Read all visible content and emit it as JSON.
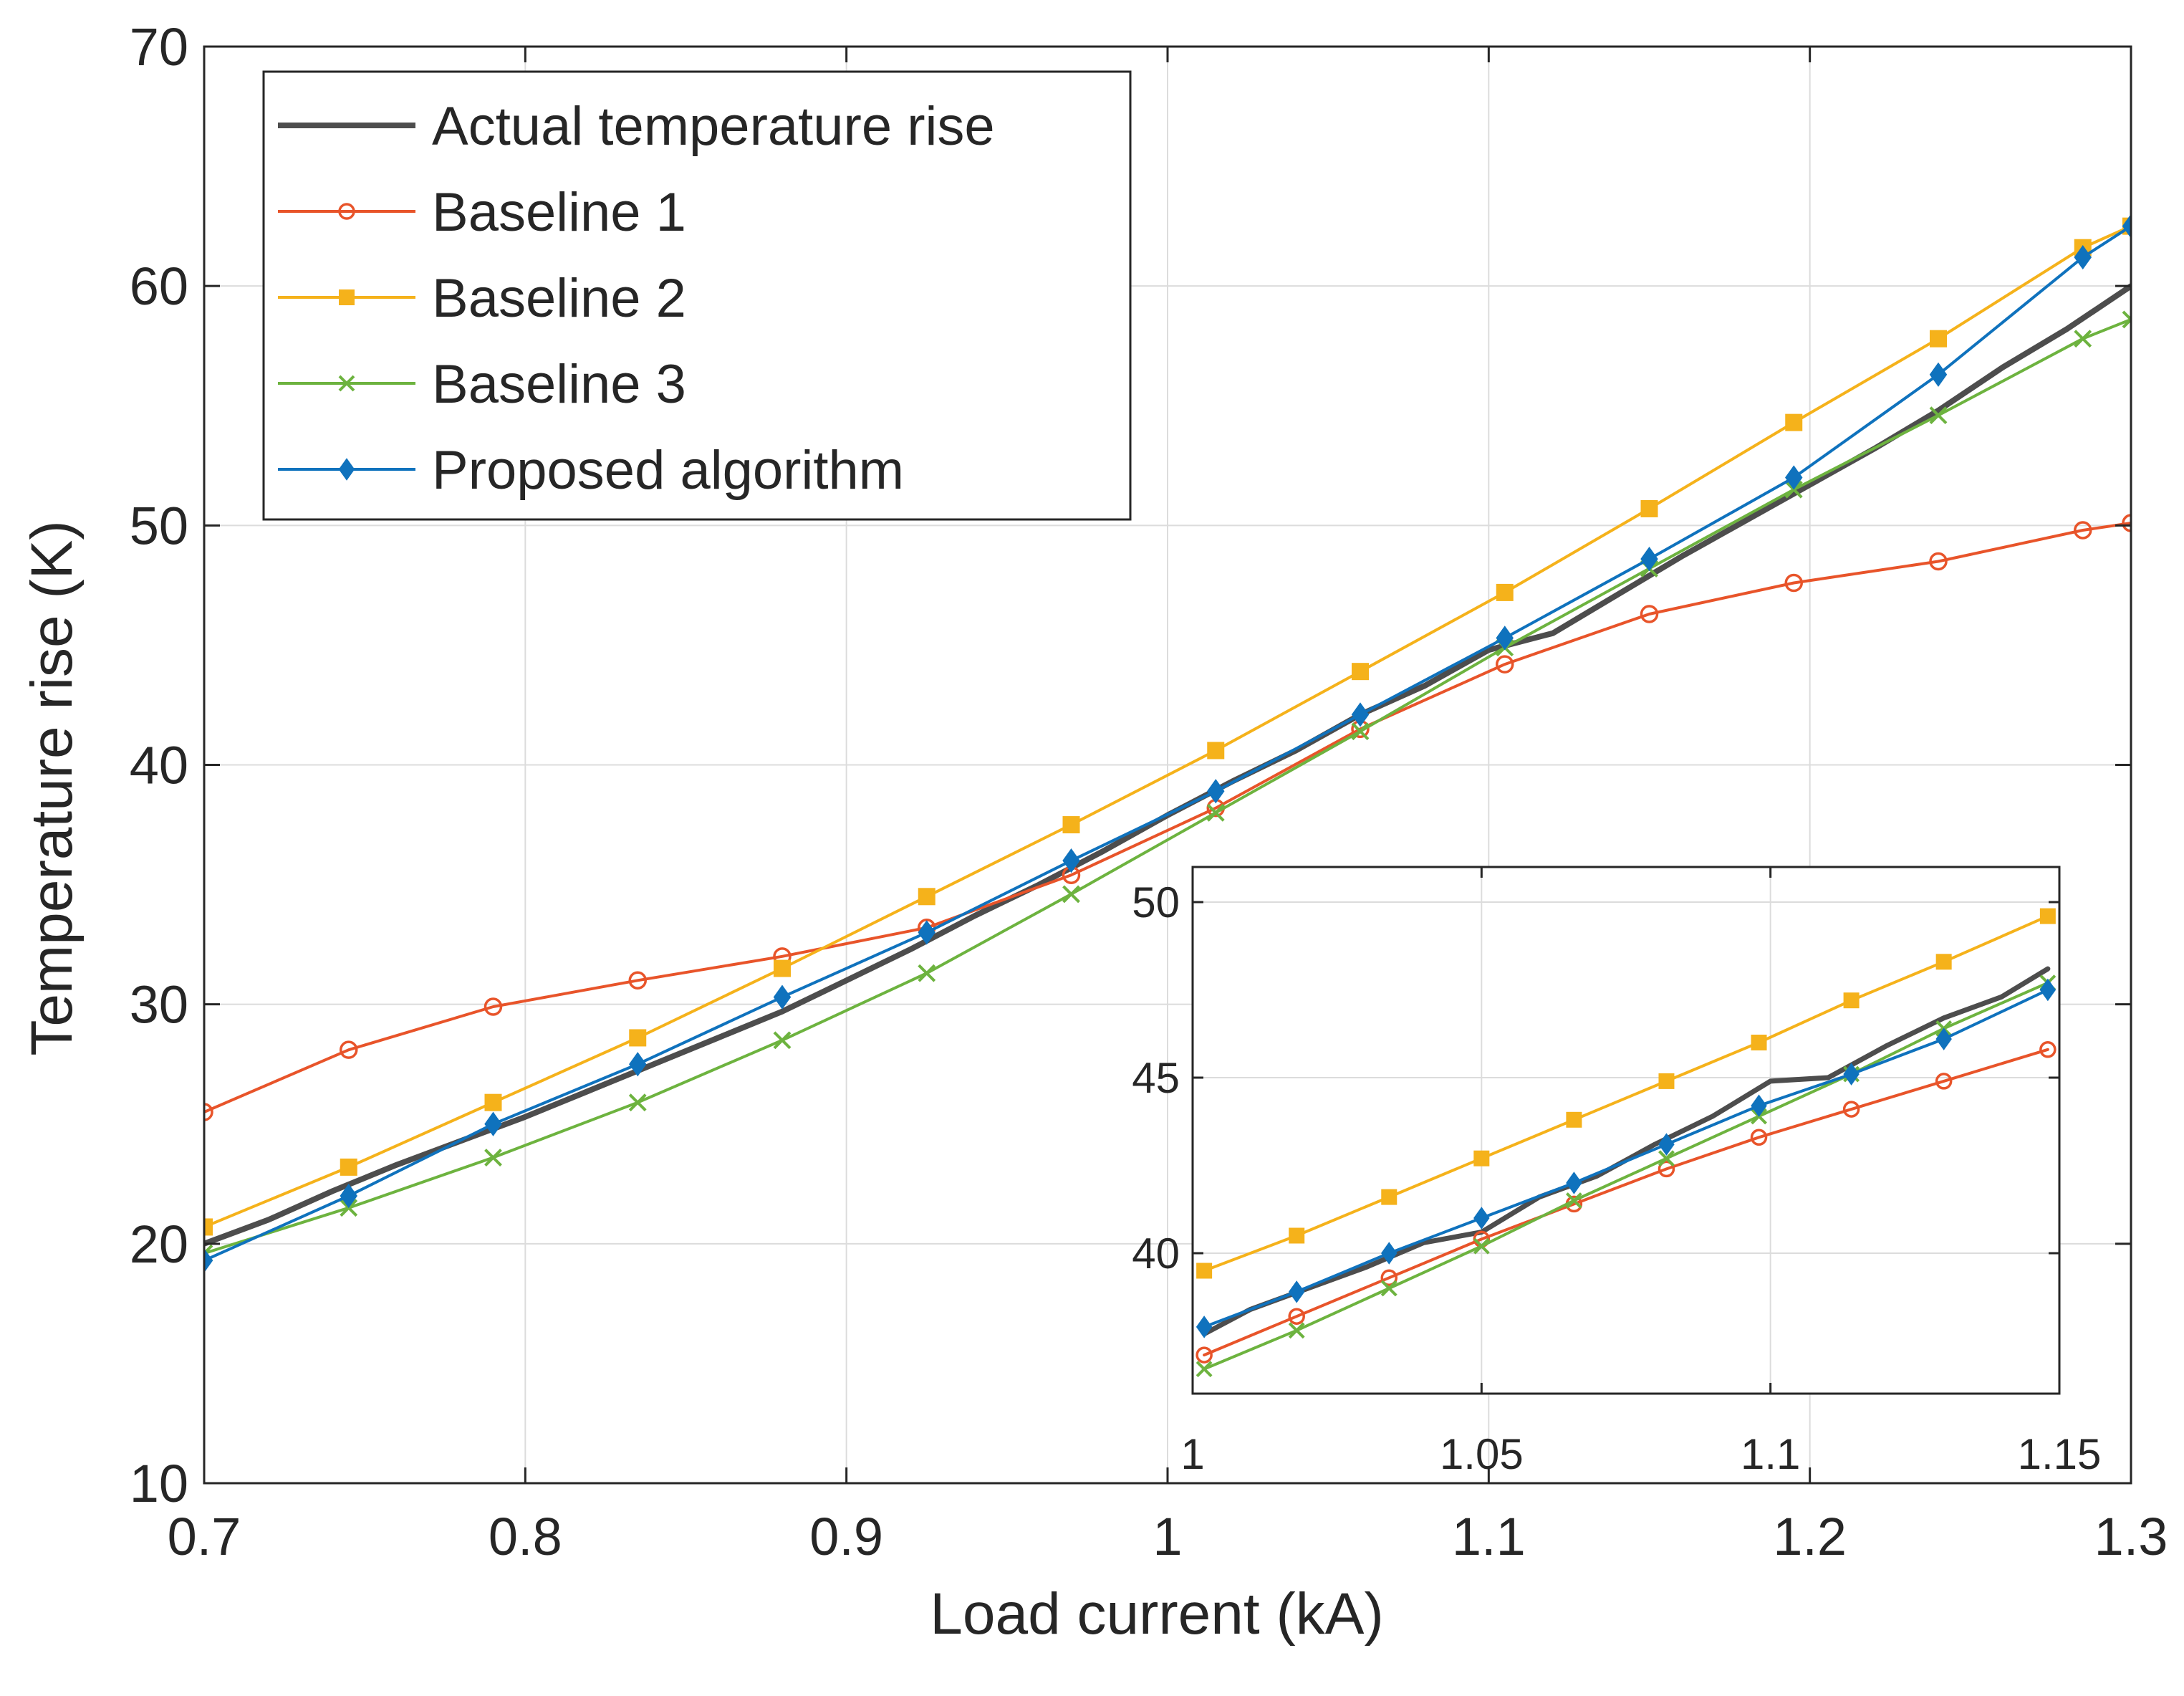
{
  "chart_data": [
    {
      "type": "line",
      "title": "",
      "xlabel": "Load current (kA)",
      "ylabel": "Temperature rise (K)",
      "xlim": [
        0.7,
        1.3
      ],
      "ylim": [
        10,
        70
      ],
      "xticks": [
        0.7,
        0.8,
        0.9,
        1,
        1.1,
        1.2,
        1.3
      ],
      "xtick_labels": [
        "0.7",
        "0.8",
        "0.9",
        "1",
        "1.1",
        "1.2",
        "1.3"
      ],
      "yticks": [
        10,
        20,
        30,
        40,
        50,
        60,
        70
      ],
      "ytick_labels": [
        "10",
        "20",
        "30",
        "40",
        "50",
        "60",
        "70"
      ],
      "grid": true,
      "legend_position": "top-left",
      "series": [
        {
          "name": "Actual temperature rise",
          "color": "#4d4d4d",
          "marker": "none",
          "x": [
            0.7,
            0.72,
            0.74,
            0.76,
            0.78,
            0.8,
            0.82,
            0.84,
            0.86,
            0.88,
            0.9,
            0.92,
            0.94,
            0.96,
            0.98,
            1.0,
            1.02,
            1.04,
            1.06,
            1.08,
            1.1,
            1.12,
            1.14,
            1.16,
            1.18,
            1.2,
            1.22,
            1.24,
            1.26,
            1.28,
            1.3
          ],
          "y": [
            20.0,
            21.0,
            22.2,
            23.3,
            24.3,
            25.3,
            26.4,
            27.5,
            28.6,
            29.7,
            31.0,
            32.3,
            33.7,
            35.0,
            36.4,
            37.9,
            39.3,
            40.6,
            42.1,
            43.3,
            44.8,
            45.5,
            47.1,
            48.7,
            50.2,
            51.7,
            53.2,
            54.8,
            56.6,
            58.2,
            60.0
          ]
        },
        {
          "name": "Baseline 1",
          "color": "#e8542a",
          "marker": "o",
          "x": [
            0.7,
            0.745,
            0.79,
            0.835,
            0.88,
            0.925,
            0.97,
            1.015,
            1.06,
            1.105,
            1.15,
            1.195,
            1.24,
            1.285,
            1.3
          ],
          "y": [
            25.5,
            28.1,
            29.9,
            31.0,
            32.0,
            33.2,
            35.4,
            38.2,
            41.5,
            44.2,
            46.3,
            47.6,
            48.5,
            49.8,
            50.1
          ]
        },
        {
          "name": "Baseline 2",
          "color": "#f5b21b",
          "marker": "s",
          "x": [
            0.7,
            0.745,
            0.79,
            0.835,
            0.88,
            0.925,
            0.97,
            1.015,
            1.06,
            1.105,
            1.15,
            1.195,
            1.24,
            1.285,
            1.3
          ],
          "y": [
            20.7,
            23.2,
            25.9,
            28.6,
            31.5,
            34.5,
            37.5,
            40.6,
            43.9,
            47.2,
            50.7,
            54.3,
            57.8,
            61.6,
            62.5
          ]
        },
        {
          "name": "Baseline 3",
          "color": "#6db33f",
          "marker": "x",
          "x": [
            0.7,
            0.745,
            0.79,
            0.835,
            0.88,
            0.925,
            0.97,
            1.015,
            1.06,
            1.105,
            1.15,
            1.195,
            1.24,
            1.285,
            1.3
          ],
          "y": [
            19.6,
            21.5,
            23.6,
            25.9,
            28.5,
            31.3,
            34.6,
            38.0,
            41.4,
            44.9,
            48.2,
            51.5,
            54.6,
            57.8,
            58.6
          ]
        },
        {
          "name": "Proposed algorithm",
          "color": "#0f72bd",
          "marker": "d",
          "x": [
            0.7,
            0.745,
            0.79,
            0.835,
            0.88,
            0.925,
            0.97,
            1.015,
            1.06,
            1.105,
            1.15,
            1.195,
            1.24,
            1.285,
            1.3
          ],
          "y": [
            19.3,
            22.0,
            25.0,
            27.5,
            30.3,
            33.0,
            36.0,
            38.9,
            42.1,
            45.3,
            48.6,
            52.0,
            56.3,
            61.2,
            62.5
          ]
        }
      ]
    },
    {
      "type": "line",
      "title": "",
      "xlabel": "",
      "ylabel": "",
      "inset": true,
      "xlim": [
        1.0,
        1.15
      ],
      "ylim": [
        36,
        51
      ],
      "xticks": [
        1,
        1.05,
        1.1,
        1.15
      ],
      "xtick_labels": [
        "1",
        "1.05",
        "1.1",
        "1.15"
      ],
      "yticks": [
        40,
        45,
        50
      ],
      "ytick_labels": [
        "40",
        "45",
        "50"
      ],
      "grid": true,
      "series": [
        {
          "name": "Actual temperature rise",
          "color": "#4d4d4d",
          "marker": "none",
          "x": [
            1.002,
            1.01,
            1.02,
            1.03,
            1.04,
            1.05,
            1.06,
            1.07,
            1.08,
            1.09,
            1.1,
            1.11,
            1.12,
            1.13,
            1.14,
            1.148
          ],
          "y": [
            37.7,
            38.4,
            39.0,
            39.6,
            40.3,
            40.6,
            41.6,
            42.2,
            43.1,
            43.9,
            44.9,
            45.0,
            45.9,
            46.7,
            47.3,
            48.1
          ]
        },
        {
          "name": "Baseline 1",
          "color": "#e8542a",
          "marker": "o",
          "x": [
            1.002,
            1.018,
            1.034,
            1.05,
            1.066,
            1.082,
            1.098,
            1.114,
            1.13,
            1.148
          ],
          "y": [
            37.1,
            38.2,
            39.3,
            40.4,
            41.4,
            42.4,
            43.3,
            44.1,
            44.9,
            45.8
          ]
        },
        {
          "name": "Baseline 2",
          "color": "#f5b21b",
          "marker": "s",
          "x": [
            1.002,
            1.018,
            1.034,
            1.05,
            1.066,
            1.082,
            1.098,
            1.114,
            1.13,
            1.148
          ],
          "y": [
            39.5,
            40.5,
            41.6,
            42.7,
            43.8,
            44.9,
            46.0,
            47.2,
            48.3,
            49.6
          ]
        },
        {
          "name": "Baseline 3",
          "color": "#6db33f",
          "marker": "x",
          "x": [
            1.002,
            1.018,
            1.034,
            1.05,
            1.066,
            1.082,
            1.098,
            1.114,
            1.13,
            1.148
          ],
          "y": [
            36.7,
            37.8,
            39.0,
            40.2,
            41.5,
            42.7,
            43.9,
            45.1,
            46.4,
            47.7
          ]
        },
        {
          "name": "Proposed algorithm",
          "color": "#0f72bd",
          "marker": "d",
          "x": [
            1.002,
            1.018,
            1.034,
            1.05,
            1.066,
            1.082,
            1.098,
            1.114,
            1.13,
            1.148
          ],
          "y": [
            37.9,
            38.9,
            40.0,
            41.0,
            42.0,
            43.1,
            44.2,
            45.1,
            46.1,
            47.5
          ]
        }
      ]
    }
  ]
}
